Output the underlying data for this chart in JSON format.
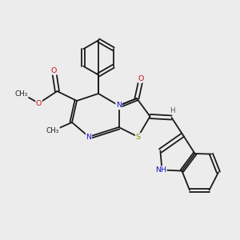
{
  "background_color": "#ececec",
  "bond_color": "#1a1a1a",
  "N_color": "#1414cc",
  "O_color": "#cc1414",
  "S_color": "#888800",
  "H_color": "#555555",
  "font_size": 6.8,
  "bond_lw": 1.3,
  "dbl_off": 0.085,
  "figsize": [
    3.0,
    3.0
  ],
  "dpi": 100,
  "xlim": [
    0,
    10
  ],
  "ylim": [
    0,
    10
  ]
}
